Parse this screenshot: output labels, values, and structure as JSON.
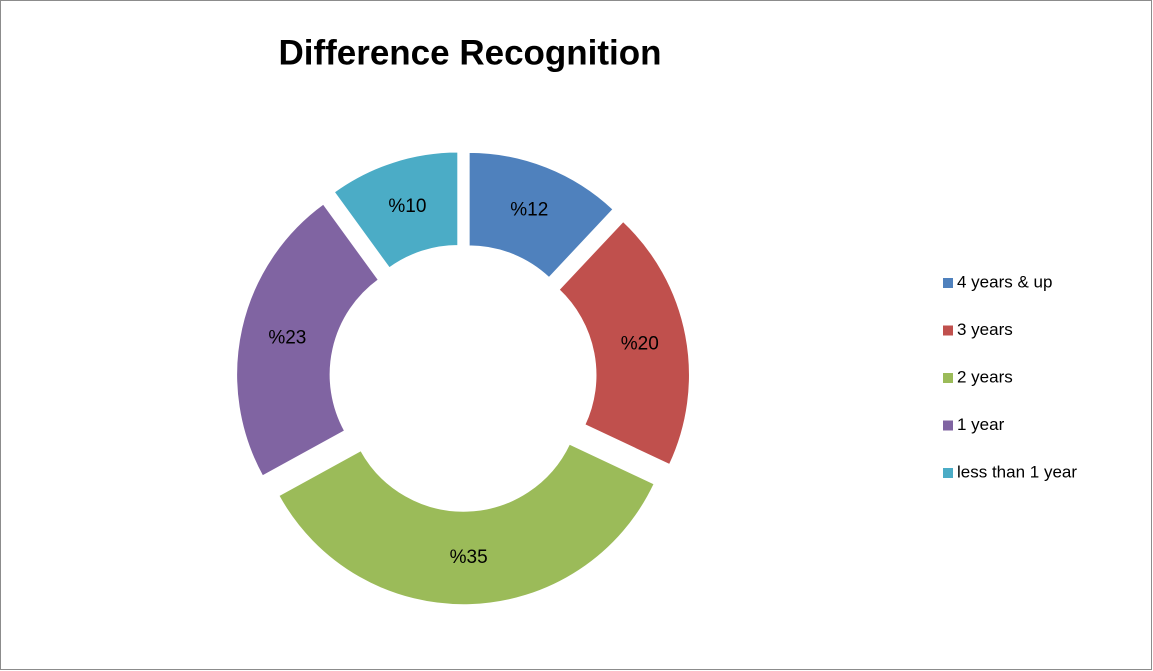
{
  "chart_data": {
    "type": "donut",
    "title": "Difference Recognition",
    "categories": [
      "4 years & up",
      "3 years",
      "2 years",
      "1 year",
      "less than 1 year"
    ],
    "values": [
      12,
      20,
      35,
      23,
      10
    ],
    "value_labels": [
      "%12",
      "%20",
      "%35",
      "%23",
      "%10"
    ],
    "colors": [
      "#4f81bd",
      "#c0504d",
      "#9bbb59",
      "#8064a2",
      "#4bacc6"
    ],
    "legend": "right"
  }
}
